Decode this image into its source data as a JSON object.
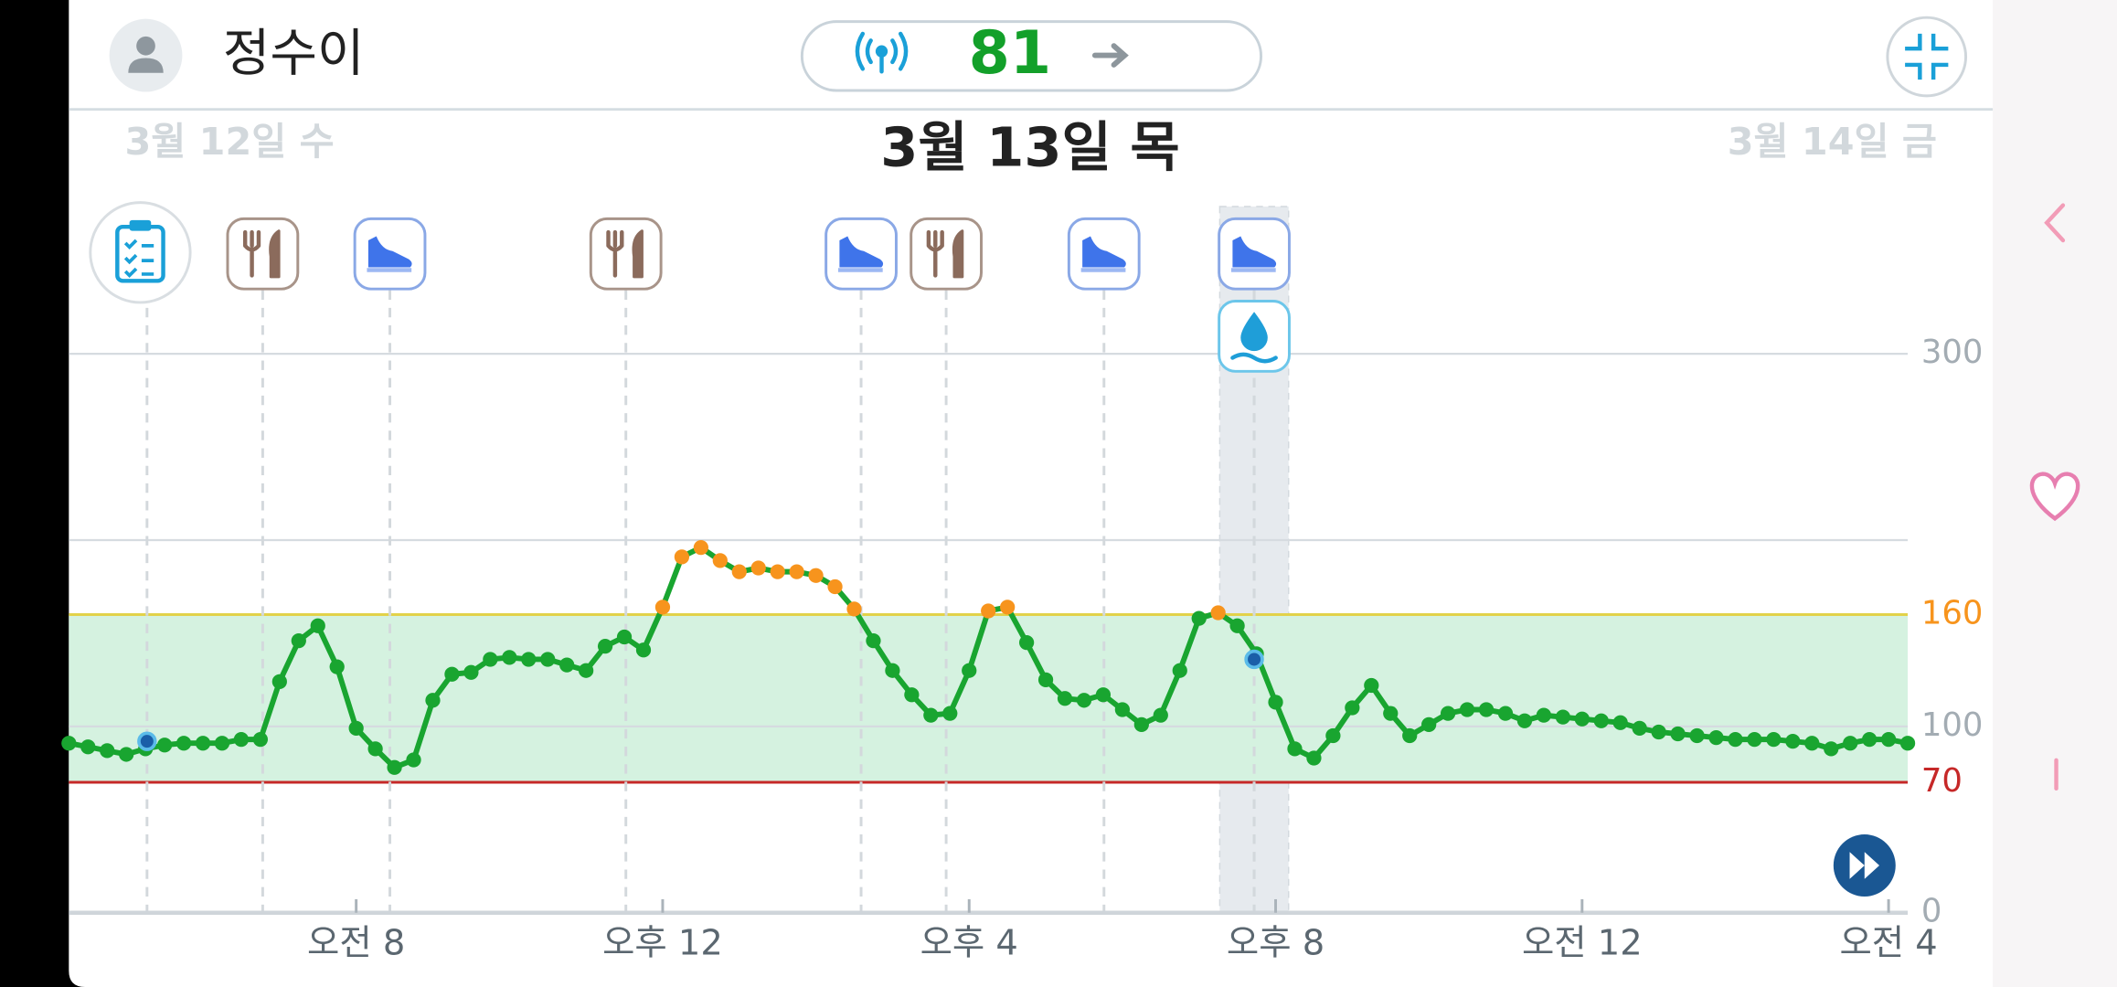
{
  "header": {
    "name": "정수이",
    "current_value": 81
  },
  "dates": {
    "previous": "3월 12일 수",
    "current": "3월 13일 목",
    "next": "3월 14일 금"
  },
  "chart_data": {
    "type": "line",
    "x": [
      4.25,
      4.5,
      4.75,
      5,
      5.25,
      5.5,
      5.75,
      6,
      6.25,
      6.5,
      6.75,
      7,
      7.25,
      7.5,
      7.75,
      8,
      8.25,
      8.5,
      8.75,
      9,
      9.25,
      9.5,
      9.75,
      10,
      10.25,
      10.5,
      10.75,
      11,
      11.25,
      11.5,
      11.75,
      12,
      12.25,
      12.5,
      12.75,
      13,
      13.25,
      13.5,
      13.75,
      14,
      14.25,
      14.5,
      14.75,
      15,
      15.25,
      15.5,
      15.75,
      16,
      16.25,
      16.5,
      16.75,
      17,
      17.25,
      17.5,
      17.75,
      18,
      18.25,
      18.5,
      18.75,
      19,
      19.25,
      19.5,
      19.75,
      20,
      20.25,
      20.5,
      20.75,
      21,
      21.25,
      21.5,
      21.75,
      22,
      22.25,
      22.5,
      22.75,
      23,
      23.25,
      23.5,
      23.75,
      24,
      24.25,
      24.5,
      24.75,
      25,
      25.25,
      25.5,
      25.75,
      26,
      26.25,
      26.5,
      26.75,
      27,
      27.25,
      27.5,
      27.75,
      28,
      28.25
    ],
    "series": [
      {
        "color": "#19a530",
        "values": [
          91,
          89,
          87,
          85,
          88,
          90,
          91,
          91,
          91,
          93,
          93,
          124,
          146,
          154,
          132,
          99,
          88,
          78,
          82,
          114,
          128,
          129,
          136,
          137,
          136,
          136,
          133,
          130,
          143,
          148,
          141,
          164,
          191,
          196,
          189,
          183,
          185,
          183,
          183,
          181,
          175,
          163,
          146,
          130,
          117,
          106,
          107,
          130,
          162,
          164,
          145,
          125,
          115,
          114,
          117,
          109,
          101,
          106,
          130,
          158,
          161,
          154,
          139,
          113,
          88,
          83,
          95,
          110,
          122,
          107,
          95,
          101,
          107,
          109,
          109,
          107,
          103,
          106,
          105,
          104,
          103,
          102,
          99,
          97,
          96,
          95,
          94,
          93,
          93,
          93,
          92,
          91,
          88,
          91,
          93,
          93,
          91
        ]
      }
    ],
    "high_color": "#f7941d",
    "low_color": "#c62828",
    "target_range": [
      70,
      160
    ],
    "target_color": "#d5f2e0",
    "xlim": [
      4.25,
      28.25
    ],
    "xticks": [
      {
        "value": 8,
        "label": "오전 8"
      },
      {
        "value": 12,
        "label": "오후 12"
      },
      {
        "value": 16,
        "label": "오후 4"
      },
      {
        "value": 20,
        "label": "오후 8"
      },
      {
        "value": 24,
        "label": "오전 12"
      },
      {
        "value": 28,
        "label": "오전 4"
      }
    ],
    "ylim": [
      0,
      300
    ],
    "yticks": [
      0,
      70,
      100,
      160,
      300
    ],
    "gridlines": [
      100,
      200,
      300
    ],
    "events": [
      {
        "x": 5.27,
        "kind": "note"
      },
      {
        "x": 6.78,
        "kind": "meal"
      },
      {
        "x": 8.44,
        "kind": "exercise"
      },
      {
        "x": 11.52,
        "kind": "meal"
      },
      {
        "x": 14.59,
        "kind": "exercise"
      },
      {
        "x": 15.7,
        "kind": "meal"
      },
      {
        "x": 17.76,
        "kind": "exercise"
      },
      {
        "x": 19.72,
        "kind": "exercise"
      },
      {
        "x": 19.72,
        "kind": "water"
      }
    ],
    "selected_x": 19.72,
    "markers": [
      {
        "x": 5.27,
        "y": 92
      },
      {
        "x": 19.72,
        "y": 136
      }
    ]
  }
}
